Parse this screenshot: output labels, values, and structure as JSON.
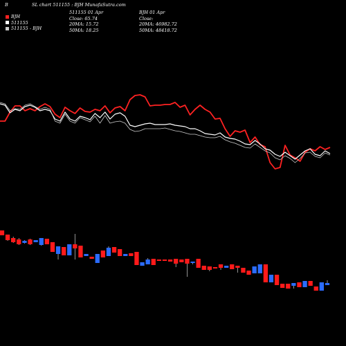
{
  "header": {
    "corner_label": "B",
    "title": "SL chart 511155 : BJH MunafaSutra.com",
    "legend": [
      {
        "label": "BJH",
        "color": "#ff2222"
      },
      {
        "label": "511155",
        "color": "#ffffff"
      },
      {
        "label": "511155 - BJH",
        "color": "#cccccc"
      }
    ],
    "block1": [
      "511155 01 Apr",
      "Close: 65.74",
      "20MA: 15.72",
      "50MA: 18.25"
    ],
    "block2": [
      "BJH 01 Apr",
      "Close:",
      "20MA: 46982.72",
      "50MA: 48418.72"
    ]
  },
  "chart_data": [
    {
      "type": "line",
      "title": "SL chart 511155 : BJH",
      "series": [
        {
          "name": "BJH",
          "color": "#ff2222",
          "values": [
            175,
            175,
            162,
            153,
            153,
            160,
            157,
            160,
            154,
            150,
            154,
            165,
            170,
            155,
            160,
            164,
            156,
            161,
            162,
            158,
            160,
            153,
            163,
            156,
            154,
            160,
            144,
            138,
            137,
            140,
            153,
            152,
            152,
            151,
            151,
            148,
            155,
            152,
            166,
            158,
            152,
            158,
            162,
            172,
            171,
            186,
            197,
            189,
            191,
            188,
            206,
            198,
            209,
            212,
            235,
            244,
            242,
            210,
            224,
            228,
            233,
            220,
            215,
            218,
            212,
            216,
            213
          ]
        },
        {
          "name": "511155",
          "color": "#ffffff",
          "values": [
            150,
            152,
            163,
            158,
            160,
            154,
            152,
            155,
            160,
            158,
            160,
            172,
            175,
            162,
            172,
            175,
            168,
            170,
            173,
            164,
            170,
            162,
            172,
            165,
            163,
            168,
            181,
            183,
            181,
            179,
            178,
            180,
            180,
            180,
            179,
            181,
            182,
            183,
            186,
            186,
            189,
            193,
            194,
            195,
            192,
            198,
            200,
            201,
            204,
            208,
            209,
            203,
            208,
            215,
            217,
            223,
            226,
            220,
            225,
            230,
            224,
            218,
            215,
            223,
            225,
            218,
            222
          ]
        },
        {
          "name": "511155 - BJH",
          "color": "#cccccc",
          "values": [
            148,
            150,
            160,
            157,
            158,
            152,
            150,
            154,
            158,
            155,
            158,
            175,
            178,
            165,
            175,
            178,
            170,
            173,
            176,
            168,
            178,
            167,
            178,
            176,
            175,
            178,
            187,
            190,
            189,
            186,
            186,
            186,
            186,
            185,
            187,
            189,
            190,
            192,
            194,
            194,
            196,
            198,
            199,
            199,
            197,
            202,
            205,
            207,
            210,
            213,
            214,
            208,
            213,
            218,
            221,
            228,
            231,
            225,
            229,
            235,
            229,
            221,
            220,
            226,
            228,
            221,
            224
          ]
        }
      ]
    },
    {
      "type": "bar",
      "title": "candlestick",
      "series": [
        {
          "name": "candles",
          "values": [
            {
              "o": 333,
              "c": 340,
              "h": 333,
              "l": 340,
              "up": false
            },
            {
              "o": 339,
              "c": 347,
              "h": 339,
              "l": 348,
              "up": false
            },
            {
              "o": 344,
              "c": 350,
              "h": 342,
              "l": 351,
              "up": false
            },
            {
              "o": 346,
              "c": 353,
              "h": 344,
              "l": 354,
              "up": false
            },
            {
              "o": 348,
              "c": 351,
              "h": 347,
              "l": 352,
              "up": true
            },
            {
              "o": 346,
              "c": 353,
              "h": 345,
              "l": 354,
              "up": false
            },
            {
              "o": 347,
              "c": 350,
              "h": 347,
              "l": 350,
              "up": true
            },
            {
              "o": 344,
              "c": 354,
              "h": 344,
              "l": 355,
              "up": true
            },
            {
              "o": 345,
              "c": 353,
              "h": 345,
              "l": 353,
              "up": false
            },
            {
              "o": 350,
              "c": 364,
              "h": 350,
              "l": 364,
              "up": false
            },
            {
              "o": 356,
              "c": 367,
              "h": 356,
              "l": 375,
              "up": true
            },
            {
              "o": 357,
              "c": 369,
              "h": 357,
              "l": 369,
              "up": false
            },
            {
              "o": 353,
              "c": 369,
              "h": 353,
              "l": 369,
              "up": true
            },
            {
              "o": 353,
              "c": 359,
              "h": 338,
              "l": 375,
              "up": false
            },
            {
              "o": 355,
              "c": 372,
              "h": 355,
              "l": 372,
              "up": false
            },
            {
              "o": 367,
              "c": 370,
              "h": 367,
              "l": 370,
              "up": true
            },
            {
              "o": 371,
              "c": 374,
              "h": 371,
              "l": 374,
              "up": false
            },
            {
              "o": 367,
              "c": 380,
              "h": 367,
              "l": 380,
              "up": true
            },
            {
              "o": 362,
              "c": 372,
              "h": 362,
              "l": 372,
              "up": false
            },
            {
              "o": 358,
              "c": 370,
              "h": 356,
              "l": 370,
              "up": true
            },
            {
              "o": 357,
              "c": 365,
              "h": 357,
              "l": 365,
              "up": false
            },
            {
              "o": 360,
              "c": 370,
              "h": 360,
              "l": 370,
              "up": false
            },
            {
              "o": 367,
              "c": 370,
              "h": 367,
              "l": 370,
              "up": true
            },
            {
              "o": 366,
              "c": 370,
              "h": 366,
              "l": 370,
              "up": false
            },
            {
              "o": 364,
              "c": 383,
              "h": 364,
              "l": 383,
              "up": false
            },
            {
              "o": 379,
              "c": 384,
              "h": 379,
              "l": 384,
              "up": true
            },
            {
              "o": 375,
              "c": 382,
              "h": 373,
              "l": 382,
              "up": true
            },
            {
              "o": 374,
              "c": 383,
              "h": 374,
              "l": 383,
              "up": false
            },
            {
              "o": 375,
              "c": 377,
              "h": 375,
              "l": 377,
              "up": false
            },
            {
              "o": 375,
              "c": 377,
              "h": 375,
              "l": 377,
              "up": false
            },
            {
              "o": 375,
              "c": 378,
              "h": 375,
              "l": 378,
              "up": false
            },
            {
              "o": 374,
              "c": 381,
              "h": 374,
              "l": 386,
              "up": false
            },
            {
              "o": 375,
              "c": 379,
              "h": 375,
              "l": 379,
              "up": false
            },
            {
              "o": 374,
              "c": 381,
              "h": 374,
              "l": 400,
              "up": false
            },
            {
              "o": 378,
              "c": 380,
              "h": 378,
              "l": 382,
              "up": true
            },
            {
              "o": 374,
              "c": 387,
              "h": 374,
              "l": 387,
              "up": false
            },
            {
              "o": 384,
              "c": 390,
              "h": 384,
              "l": 390,
              "up": false
            },
            {
              "o": 385,
              "c": 390,
              "h": 385,
              "l": 392,
              "up": false
            },
            {
              "o": 386,
              "c": 387,
              "h": 386,
              "l": 387,
              "up": false
            },
            {
              "o": 382,
              "c": 387,
              "h": 382,
              "l": 390,
              "up": false
            },
            {
              "o": 384,
              "c": 387,
              "h": 384,
              "l": 387,
              "up": true
            },
            {
              "o": 382,
              "c": 389,
              "h": 382,
              "l": 389,
              "up": false
            },
            {
              "o": 384,
              "c": 387,
              "h": 384,
              "l": 394,
              "up": false
            },
            {
              "o": 387,
              "c": 394,
              "h": 387,
              "l": 394,
              "up": false
            },
            {
              "o": 391,
              "c": 397,
              "h": 391,
              "l": 397,
              "up": false
            },
            {
              "o": 385,
              "c": 395,
              "h": 385,
              "l": 395,
              "up": true
            },
            {
              "o": 382,
              "c": 395,
              "h": 382,
              "l": 395,
              "up": true
            },
            {
              "o": 382,
              "c": 408,
              "h": 382,
              "l": 408,
              "up": false
            },
            {
              "o": 397,
              "c": 408,
              "h": 397,
              "l": 408,
              "up": true
            },
            {
              "o": 397,
              "c": 412,
              "h": 397,
              "l": 412,
              "up": false
            },
            {
              "o": 410,
              "c": 416,
              "h": 410,
              "l": 416,
              "up": false
            },
            {
              "o": 410,
              "c": 417,
              "h": 410,
              "l": 417,
              "up": false
            },
            {
              "o": 409,
              "c": 413,
              "h": 409,
              "l": 417,
              "up": true
            },
            {
              "o": 408,
              "c": 415,
              "h": 408,
              "l": 415,
              "up": false
            },
            {
              "o": 406,
              "c": 415,
              "h": 406,
              "l": 415,
              "up": true
            },
            {
              "o": 406,
              "c": 413,
              "h": 406,
              "l": 413,
              "up": false
            },
            {
              "o": 414,
              "c": 420,
              "h": 414,
              "l": 420,
              "up": false
            },
            {
              "o": 408,
              "c": 420,
              "h": 408,
              "l": 420,
              "up": true
            },
            {
              "o": 409,
              "c": 412,
              "h": 405,
              "l": 412,
              "up": true
            }
          ]
        }
      ]
    }
  ]
}
